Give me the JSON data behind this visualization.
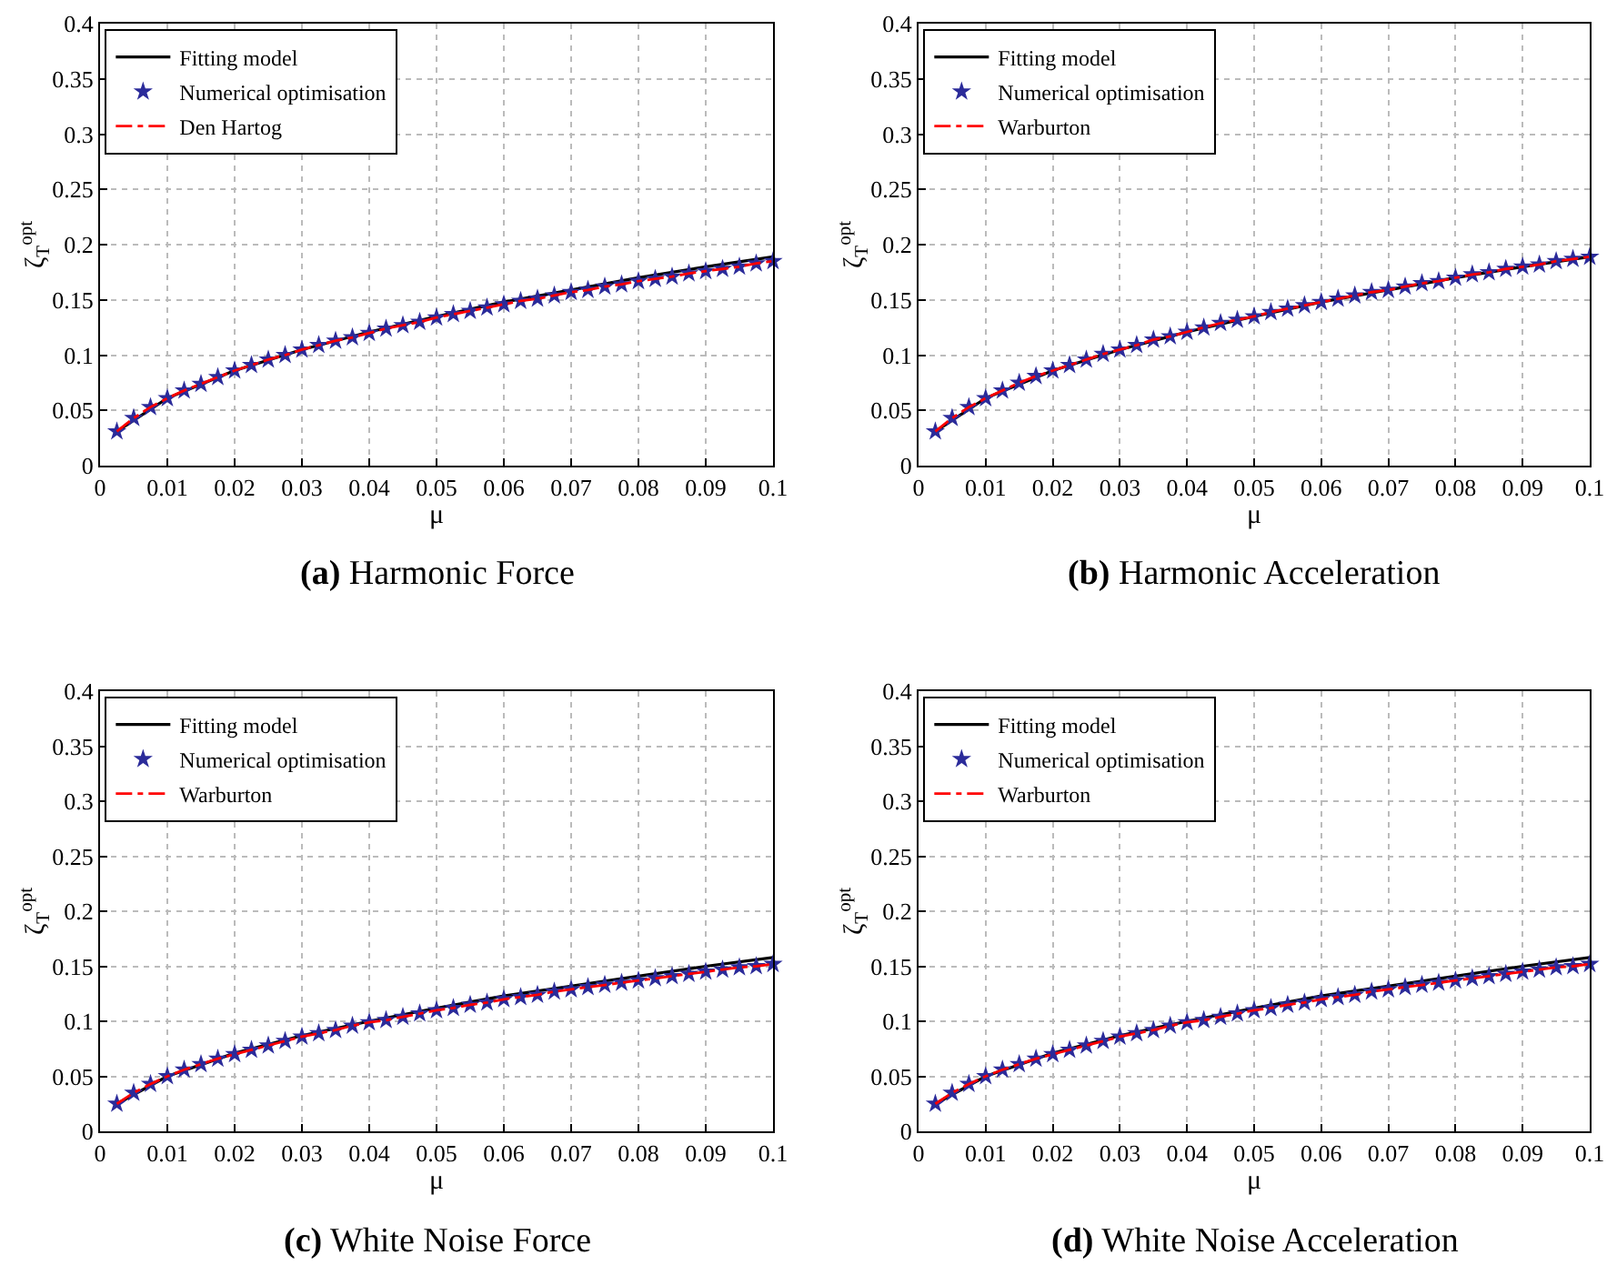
{
  "chart_data": [
    {
      "type": "line",
      "title": "(a) Harmonic Force",
      "xlabel": "μ",
      "ylabel": "ζ$_{T}$$^{opt}$",
      "xlim": [
        0,
        0.1
      ],
      "ylim": [
        0,
        0.4
      ],
      "xticks": [
        0,
        0.01,
        0.02,
        0.03,
        0.04,
        0.05,
        0.06,
        0.07,
        0.08,
        0.09,
        0.1
      ],
      "yticks": [
        0,
        0.05,
        0.1,
        0.15,
        0.2,
        0.25,
        0.3,
        0.35,
        0.4
      ],
      "grid": true,
      "legend": "top left",
      "x": [
        0.0025,
        0.005,
        0.0075,
        0.01,
        0.0125,
        0.015,
        0.0175,
        0.02,
        0.0225,
        0.025,
        0.0275,
        0.03,
        0.0325,
        0.035,
        0.0375,
        0.04,
        0.0425,
        0.045,
        0.0475,
        0.05,
        0.0525,
        0.055,
        0.0575,
        0.06,
        0.0625,
        0.065,
        0.0675,
        0.07,
        0.0725,
        0.075,
        0.0775,
        0.08,
        0.0825,
        0.085,
        0.0875,
        0.09,
        0.0925,
        0.095,
        0.0975,
        0.1
      ],
      "series": [
        {
          "name": "Fitting model",
          "color": "#000000",
          "marker": "none",
          "line_style": "solid",
          "x": [
            0.0025,
            0.01,
            0.02,
            0.03,
            0.04,
            0.05,
            0.06,
            0.07,
            0.08,
            0.09,
            0.1
          ],
          "values": [
            0.031,
            0.061,
            0.086,
            0.105,
            0.121,
            0.135,
            0.148,
            0.159,
            0.17,
            0.18,
            0.189
          ]
        },
        {
          "name": "Numerical optimisation",
          "type": "scatter",
          "color": "#2b2b9a",
          "marker": "star",
          "values": [
            0.031,
            0.043,
            0.053,
            0.061,
            0.068,
            0.074,
            0.08,
            0.086,
            0.091,
            0.096,
            0.1,
            0.105,
            0.109,
            0.113,
            0.116,
            0.12,
            0.124,
            0.127,
            0.13,
            0.134,
            0.137,
            0.14,
            0.143,
            0.146,
            0.149,
            0.151,
            0.154,
            0.157,
            0.159,
            0.162,
            0.164,
            0.167,
            0.169,
            0.171,
            0.174,
            0.176,
            0.178,
            0.18,
            0.183,
            0.185
          ]
        },
        {
          "name": "Den Hartog",
          "color": "#ff0000",
          "marker": "none",
          "line_style": "dashed",
          "values": [
            0.031,
            0.043,
            0.053,
            0.061,
            0.068,
            0.074,
            0.08,
            0.086,
            0.091,
            0.096,
            0.1,
            0.105,
            0.109,
            0.113,
            0.116,
            0.12,
            0.124,
            0.127,
            0.13,
            0.134,
            0.137,
            0.14,
            0.143,
            0.146,
            0.149,
            0.151,
            0.154,
            0.157,
            0.159,
            0.162,
            0.164,
            0.167,
            0.169,
            0.171,
            0.174,
            0.176,
            0.178,
            0.18,
            0.183,
            0.185
          ]
        }
      ]
    },
    {
      "type": "line",
      "title": "(b) Harmonic Acceleration",
      "xlabel": "μ",
      "ylabel": "ζ$_{T}$$^{opt}$",
      "xlim": [
        0,
        0.1
      ],
      "ylim": [
        0,
        0.4
      ],
      "xticks": [
        0,
        0.01,
        0.02,
        0.03,
        0.04,
        0.05,
        0.06,
        0.07,
        0.08,
        0.09,
        0.1
      ],
      "yticks": [
        0,
        0.05,
        0.1,
        0.15,
        0.2,
        0.25,
        0.3,
        0.35,
        0.4
      ],
      "grid": true,
      "legend": "top left",
      "x": [
        0.0025,
        0.005,
        0.0075,
        0.01,
        0.0125,
        0.015,
        0.0175,
        0.02,
        0.0225,
        0.025,
        0.0275,
        0.03,
        0.0325,
        0.035,
        0.0375,
        0.04,
        0.0425,
        0.045,
        0.0475,
        0.05,
        0.0525,
        0.055,
        0.0575,
        0.06,
        0.0625,
        0.065,
        0.0675,
        0.07,
        0.0725,
        0.075,
        0.0775,
        0.08,
        0.0825,
        0.085,
        0.0875,
        0.09,
        0.0925,
        0.095,
        0.0975,
        0.1
      ],
      "series": [
        {
          "name": "Fitting model",
          "color": "#000000",
          "marker": "none",
          "line_style": "solid",
          "x": [
            0.0025,
            0.01,
            0.02,
            0.03,
            0.04,
            0.05,
            0.06,
            0.07,
            0.08,
            0.09,
            0.1
          ],
          "values": [
            0.031,
            0.061,
            0.086,
            0.105,
            0.121,
            0.135,
            0.148,
            0.159,
            0.17,
            0.18,
            0.189
          ]
        },
        {
          "name": "Numerical optimisation",
          "type": "scatter",
          "color": "#2b2b9a",
          "marker": "star",
          "values": [
            0.031,
            0.043,
            0.053,
            0.061,
            0.068,
            0.075,
            0.081,
            0.086,
            0.091,
            0.096,
            0.101,
            0.105,
            0.109,
            0.114,
            0.117,
            0.121,
            0.125,
            0.129,
            0.132,
            0.135,
            0.139,
            0.142,
            0.145,
            0.148,
            0.151,
            0.154,
            0.157,
            0.159,
            0.162,
            0.165,
            0.167,
            0.17,
            0.173,
            0.175,
            0.178,
            0.18,
            0.182,
            0.185,
            0.187,
            0.189
          ]
        },
        {
          "name": "Warburton",
          "color": "#ff0000",
          "marker": "none",
          "line_style": "dashed",
          "values": [
            0.031,
            0.043,
            0.053,
            0.061,
            0.068,
            0.075,
            0.081,
            0.086,
            0.091,
            0.096,
            0.101,
            0.105,
            0.109,
            0.114,
            0.117,
            0.121,
            0.125,
            0.129,
            0.132,
            0.135,
            0.139,
            0.142,
            0.145,
            0.148,
            0.151,
            0.154,
            0.157,
            0.159,
            0.162,
            0.165,
            0.167,
            0.17,
            0.173,
            0.175,
            0.178,
            0.18,
            0.182,
            0.185,
            0.187,
            0.189
          ]
        }
      ]
    },
    {
      "type": "line",
      "title": "(c) White Noise Force",
      "xlabel": "μ",
      "ylabel": "ζ$_{T}$$^{opt}$",
      "xlim": [
        0,
        0.1
      ],
      "ylim": [
        0,
        0.4
      ],
      "xticks": [
        0,
        0.01,
        0.02,
        0.03,
        0.04,
        0.05,
        0.06,
        0.07,
        0.08,
        0.09,
        0.1
      ],
      "yticks": [
        0,
        0.05,
        0.1,
        0.15,
        0.2,
        0.25,
        0.3,
        0.35,
        0.4
      ],
      "grid": true,
      "legend": "top left",
      "x": [
        0.0025,
        0.005,
        0.0075,
        0.01,
        0.0125,
        0.015,
        0.0175,
        0.02,
        0.0225,
        0.025,
        0.0275,
        0.03,
        0.0325,
        0.035,
        0.0375,
        0.04,
        0.0425,
        0.045,
        0.0475,
        0.05,
        0.0525,
        0.055,
        0.0575,
        0.06,
        0.0625,
        0.065,
        0.0675,
        0.07,
        0.0725,
        0.075,
        0.0775,
        0.08,
        0.0825,
        0.085,
        0.0875,
        0.09,
        0.0925,
        0.095,
        0.0975,
        0.1
      ],
      "series": [
        {
          "name": "Fitting model",
          "color": "#000000",
          "marker": "none",
          "line_style": "solid",
          "x": [
            0.0025,
            0.01,
            0.02,
            0.03,
            0.04,
            0.05,
            0.06,
            0.07,
            0.08,
            0.09,
            0.1
          ],
          "values": [
            0.025,
            0.05,
            0.071,
            0.087,
            0.1,
            0.112,
            0.123,
            0.132,
            0.141,
            0.15,
            0.158
          ]
        },
        {
          "name": "Numerical optimisation",
          "type": "scatter",
          "color": "#2b2b9a",
          "marker": "star",
          "values": [
            0.025,
            0.035,
            0.043,
            0.05,
            0.056,
            0.061,
            0.066,
            0.07,
            0.074,
            0.078,
            0.082,
            0.086,
            0.089,
            0.092,
            0.096,
            0.099,
            0.101,
            0.104,
            0.107,
            0.11,
            0.112,
            0.115,
            0.117,
            0.12,
            0.122,
            0.124,
            0.127,
            0.129,
            0.131,
            0.133,
            0.135,
            0.137,
            0.139,
            0.141,
            0.143,
            0.145,
            0.147,
            0.149,
            0.15,
            0.152
          ]
        },
        {
          "name": "Warburton",
          "color": "#ff0000",
          "marker": "none",
          "line_style": "dashed",
          "values": [
            0.025,
            0.035,
            0.043,
            0.05,
            0.056,
            0.061,
            0.066,
            0.07,
            0.074,
            0.078,
            0.082,
            0.086,
            0.089,
            0.092,
            0.096,
            0.099,
            0.101,
            0.104,
            0.107,
            0.11,
            0.112,
            0.115,
            0.117,
            0.12,
            0.122,
            0.124,
            0.127,
            0.129,
            0.131,
            0.133,
            0.135,
            0.137,
            0.139,
            0.141,
            0.143,
            0.145,
            0.147,
            0.149,
            0.15,
            0.152
          ]
        }
      ]
    },
    {
      "type": "line",
      "title": "(d) White Noise Acceleration",
      "xlabel": "μ",
      "ylabel": "ζ$_{T}$$^{opt}$",
      "xlim": [
        0,
        0.1
      ],
      "ylim": [
        0,
        0.4
      ],
      "xticks": [
        0,
        0.01,
        0.02,
        0.03,
        0.04,
        0.05,
        0.06,
        0.07,
        0.08,
        0.09,
        0.1
      ],
      "yticks": [
        0,
        0.05,
        0.1,
        0.15,
        0.2,
        0.25,
        0.3,
        0.35,
        0.4
      ],
      "grid": true,
      "legend": "top left",
      "x": [
        0.0025,
        0.005,
        0.0075,
        0.01,
        0.0125,
        0.015,
        0.0175,
        0.02,
        0.0225,
        0.025,
        0.0275,
        0.03,
        0.0325,
        0.035,
        0.0375,
        0.04,
        0.0425,
        0.045,
        0.0475,
        0.05,
        0.0525,
        0.055,
        0.0575,
        0.06,
        0.0625,
        0.065,
        0.0675,
        0.07,
        0.0725,
        0.075,
        0.0775,
        0.08,
        0.0825,
        0.085,
        0.0875,
        0.09,
        0.0925,
        0.095,
        0.0975,
        0.1
      ],
      "series": [
        {
          "name": "Fitting model",
          "color": "#000000",
          "marker": "none",
          "line_style": "solid",
          "x": [
            0.0025,
            0.01,
            0.02,
            0.03,
            0.04,
            0.05,
            0.06,
            0.07,
            0.08,
            0.09,
            0.1
          ],
          "values": [
            0.025,
            0.05,
            0.071,
            0.087,
            0.1,
            0.112,
            0.123,
            0.132,
            0.141,
            0.15,
            0.158
          ]
        },
        {
          "name": "Numerical optimisation",
          "type": "scatter",
          "color": "#2b2b9a",
          "marker": "star",
          "values": [
            0.025,
            0.035,
            0.043,
            0.05,
            0.056,
            0.061,
            0.066,
            0.07,
            0.074,
            0.078,
            0.082,
            0.086,
            0.089,
            0.092,
            0.096,
            0.099,
            0.101,
            0.104,
            0.107,
            0.11,
            0.112,
            0.115,
            0.117,
            0.12,
            0.122,
            0.124,
            0.127,
            0.129,
            0.131,
            0.133,
            0.135,
            0.137,
            0.139,
            0.141,
            0.143,
            0.145,
            0.147,
            0.149,
            0.15,
            0.152
          ]
        },
        {
          "name": "Warburton",
          "color": "#ff0000",
          "marker": "none",
          "line_style": "dashed",
          "values": [
            0.025,
            0.035,
            0.043,
            0.05,
            0.056,
            0.061,
            0.066,
            0.07,
            0.074,
            0.078,
            0.082,
            0.086,
            0.089,
            0.092,
            0.096,
            0.099,
            0.101,
            0.104,
            0.107,
            0.11,
            0.112,
            0.115,
            0.117,
            0.12,
            0.122,
            0.124,
            0.127,
            0.129,
            0.131,
            0.133,
            0.135,
            0.137,
            0.139,
            0.141,
            0.143,
            0.145,
            0.147,
            0.149,
            0.15,
            0.152
          ]
        }
      ]
    }
  ]
}
